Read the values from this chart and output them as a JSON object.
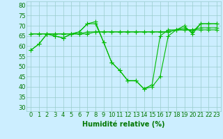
{
  "xlabel": "Humidité relative (%)",
  "bg_color": "#cceeff",
  "grid_color": "#99cccc",
  "line_color": "#00bb00",
  "marker": "+",
  "markersize": 4,
  "linewidth": 0.8,
  "ylim": [
    28,
    82
  ],
  "xlim": [
    -0.5,
    23.5
  ],
  "yticks": [
    30,
    35,
    40,
    45,
    50,
    55,
    60,
    65,
    70,
    75,
    80
  ],
  "xticks": [
    0,
    1,
    2,
    3,
    4,
    5,
    6,
    7,
    8,
    9,
    10,
    11,
    12,
    13,
    14,
    15,
    16,
    17,
    18,
    19,
    20,
    21,
    22,
    23
  ],
  "series": [
    [
      58,
      61,
      66,
      65,
      64,
      66,
      67,
      71,
      71,
      62,
      52,
      48,
      43,
      43,
      39,
      40,
      45,
      65,
      68,
      70,
      66,
      71,
      71,
      71
    ],
    [
      58,
      61,
      66,
      65,
      64,
      66,
      67,
      71,
      72,
      62,
      52,
      48,
      43,
      43,
      39,
      41,
      65,
      68,
      68,
      69,
      67,
      71,
      71,
      71
    ],
    [
      66,
      66,
      66,
      66,
      66,
      66,
      66,
      67,
      67,
      67,
      67,
      67,
      67,
      67,
      67,
      67,
      67,
      67,
      68,
      68,
      68,
      68,
      68,
      68
    ],
    [
      66,
      66,
      66,
      66,
      66,
      66,
      66,
      66,
      67,
      67,
      67,
      67,
      67,
      67,
      67,
      67,
      67,
      67,
      68,
      68,
      68,
      69,
      69,
      69
    ]
  ],
  "xlabel_fontsize": 7,
  "tick_fontsize": 6,
  "xlabel_color": "#007700",
  "tick_color": "#007700",
  "spine_color": "#99cccc"
}
